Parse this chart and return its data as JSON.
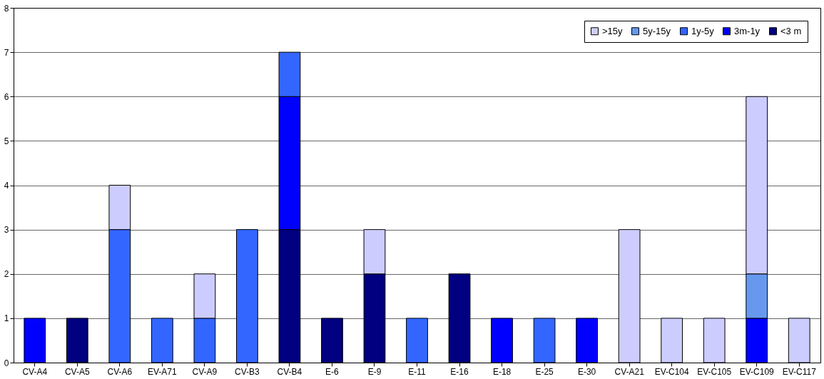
{
  "chart_data": {
    "type": "bar",
    "stacked": true,
    "categories": [
      "CV-A4",
      "CV-A5",
      "CV-A6",
      "EV-A71",
      "CV-A9",
      "CV-B3",
      "CV-B4",
      "E-6",
      "E-9",
      "E-11",
      "E-16",
      "E-18",
      "E-25",
      "E-30",
      "CV-A21",
      "EV-C104",
      "EV-C105",
      "EV-C109",
      "EV-C117"
    ],
    "series": [
      {
        "name": "<3 m",
        "color": "#000080",
        "values": [
          null,
          1,
          null,
          null,
          null,
          null,
          3,
          1,
          2,
          null,
          2,
          null,
          null,
          null,
          null,
          null,
          null,
          null,
          null
        ]
      },
      {
        "name": "3m-1y",
        "color": "#0000ff",
        "values": [
          1,
          null,
          null,
          null,
          null,
          null,
          3,
          null,
          null,
          null,
          null,
          1,
          null,
          1,
          null,
          null,
          null,
          1,
          null
        ]
      },
      {
        "name": "1y-5y",
        "color": "#3366ff",
        "values": [
          null,
          null,
          3,
          1,
          1,
          3,
          1,
          null,
          null,
          1,
          null,
          null,
          1,
          null,
          null,
          null,
          null,
          null,
          null
        ]
      },
      {
        "name": "5y-15y",
        "color": "#6699ee",
        "values": [
          null,
          null,
          null,
          null,
          null,
          null,
          null,
          null,
          null,
          null,
          null,
          null,
          null,
          null,
          null,
          null,
          null,
          1,
          null
        ]
      },
      {
        "name": ">15y",
        "color": "#ccccff",
        "values": [
          null,
          null,
          1,
          null,
          1,
          null,
          null,
          null,
          1,
          null,
          null,
          null,
          null,
          null,
          3,
          1,
          1,
          4,
          1
        ]
      }
    ],
    "ylim": [
      0,
      8
    ],
    "yticks": [
      0,
      1,
      2,
      3,
      4,
      5,
      6,
      7,
      8
    ],
    "grid": "y",
    "legend": "top right"
  }
}
